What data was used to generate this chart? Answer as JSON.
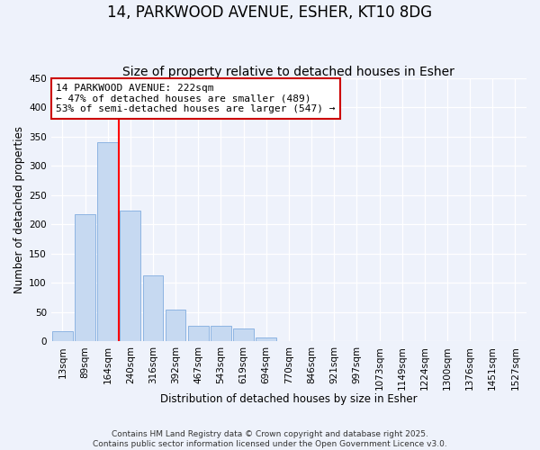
{
  "title": "14, PARKWOOD AVENUE, ESHER, KT10 8DG",
  "subtitle": "Size of property relative to detached houses in Esher",
  "xlabel": "Distribution of detached houses by size in Esher",
  "ylabel": "Number of detached properties",
  "bar_labels": [
    "13sqm",
    "89sqm",
    "164sqm",
    "240sqm",
    "316sqm",
    "392sqm",
    "467sqm",
    "543sqm",
    "619sqm",
    "694sqm",
    "770sqm",
    "846sqm",
    "921sqm",
    "997sqm",
    "1073sqm",
    "1149sqm",
    "1224sqm",
    "1300sqm",
    "1376sqm",
    "1451sqm",
    "1527sqm"
  ],
  "bar_values": [
    17,
    217,
    340,
    224,
    113,
    55,
    27,
    26,
    22,
    7,
    0,
    0,
    0,
    0,
    0,
    0,
    0,
    0,
    0,
    0,
    0
  ],
  "bar_color": "#c6d9f1",
  "bar_edge_color": "#8db4e2",
  "vline_color": "red",
  "vline_position": 2.5,
  "annotation_text": "14 PARKWOOD AVENUE: 222sqm\n← 47% of detached houses are smaller (489)\n53% of semi-detached houses are larger (547) →",
  "annotation_box_facecolor": "white",
  "annotation_box_edgecolor": "#cc0000",
  "ylim": [
    0,
    450
  ],
  "yticks": [
    0,
    50,
    100,
    150,
    200,
    250,
    300,
    350,
    400,
    450
  ],
  "title_fontsize": 12,
  "subtitle_fontsize": 10,
  "axis_label_fontsize": 8.5,
  "tick_fontsize": 7.5,
  "annotation_fontsize": 8,
  "footer_text": "Contains HM Land Registry data © Crown copyright and database right 2025.\nContains public sector information licensed under the Open Government Licence v3.0.",
  "footer_fontsize": 6.5,
  "background_color": "#eef2fb"
}
